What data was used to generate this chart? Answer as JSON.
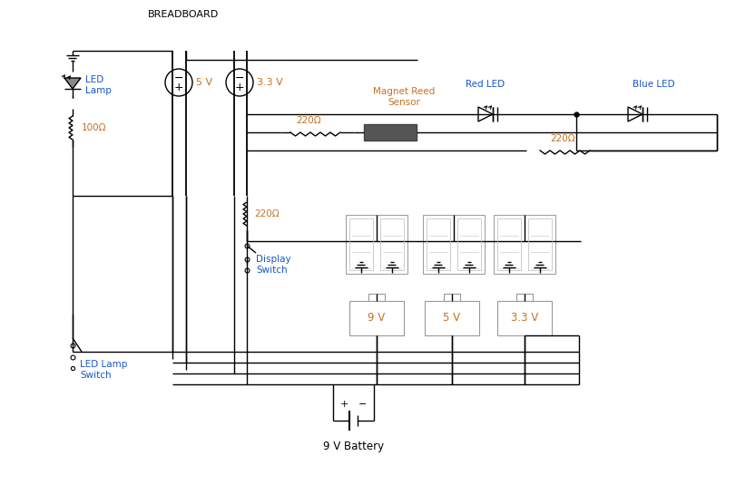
{
  "bg_color": "#ffffff",
  "line_color": "#000000",
  "text_color_orange": "#c87020",
  "text_color_blue": "#1a56c8",
  "text_color_black": "#000000",
  "breadboard_label": "BREADBOARD",
  "battery_label": "9 V Battery",
  "led_lamp_label": "LED\nLamp",
  "led_lamp_switch_label": "LED Lamp\nSwitch",
  "display_switch_label": "Display\nSwitch",
  "red_led_label": "Red LED",
  "blue_led_label": "Blue LED",
  "magnet_reed_label": "Magnet Reed\nSensor",
  "r1_label": "220Ω",
  "r2_label": "220Ω",
  "r3_label": "220Ω",
  "r4_label": "100Ω",
  "v5_label": "5 V",
  "v33_label": "3.3 V",
  "v9_label": "9 V",
  "v5b_label": "5 V",
  "v33b_label": "3.3 V"
}
